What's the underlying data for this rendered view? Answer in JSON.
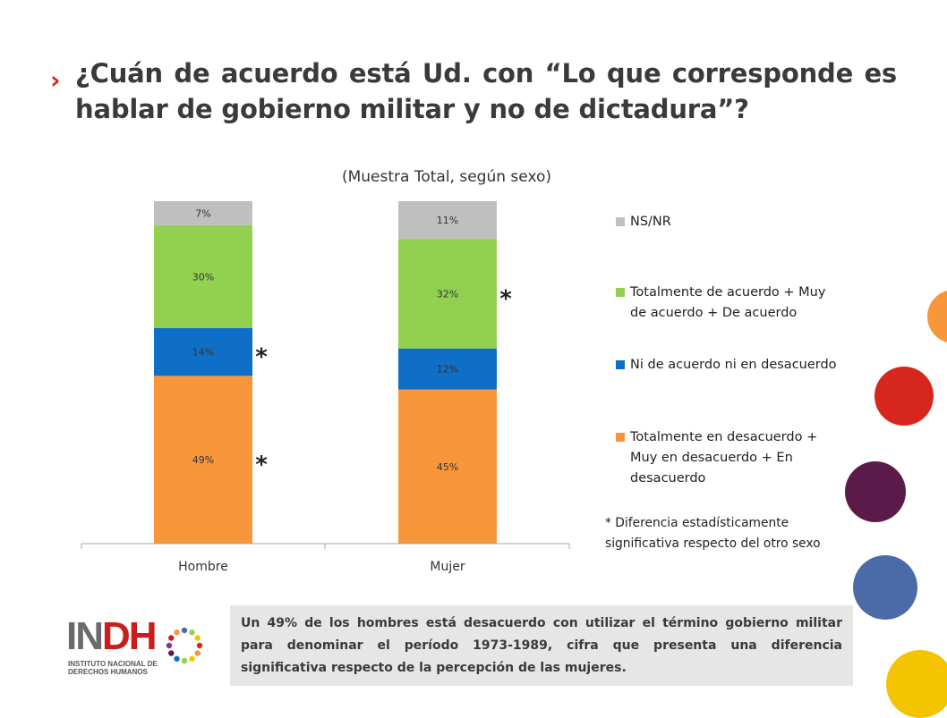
{
  "slide": {
    "title_line1": "¿Cuán de acuerdo está Ud. con “Lo que corresponde es",
    "title_line2": "hablar de gobierno militar y no de dictadura”?",
    "title_bullet": "›",
    "summary": "Un 49% de los hombres está desacuerdo con utilizar el término gobierno militar para denominar el período 1973-1989, cifra que presenta una diferencia significativa respecto de la percepción de las mujeres.",
    "footnote": "* Diferencia estadísticamente significativa respecto del otro sexo",
    "logo": {
      "mark_in": "IN",
      "mark_dh": "DH",
      "line1": "INSTITUTO NACIONAL DE",
      "line2": "DERECHOS HUMANOS"
    }
  },
  "chart_data": {
    "type": "bar",
    "stacked": true,
    "title": "(Muestra Total, según sexo)",
    "categories": [
      "Hombre",
      "Mujer"
    ],
    "ylim": [
      0,
      100
    ],
    "series": [
      {
        "name": "Totalmente en desacuerdo + Muy en desacuerdo + En desacuerdo",
        "values": [
          49,
          45
        ],
        "labels": [
          "49%",
          "45%"
        ],
        "color": "#f7963b"
      },
      {
        "name": "Ni de acuerdo ni en desacuerdo",
        "values": [
          14,
          12
        ],
        "labels": [
          "14%",
          "12%"
        ],
        "color": "#0f6fc6"
      },
      {
        "name": "Totalmente de acuerdo + Muy de acuerdo + De acuerdo",
        "values": [
          30,
          32
        ],
        "labels": [
          "30%",
          "32%"
        ],
        "color": "#92d050"
      },
      {
        "name": "NS/NR",
        "values": [
          7,
          11
        ],
        "labels": [
          "7%",
          "11%"
        ],
        "color": "#bfbfbf"
      }
    ],
    "legend_order": [
      3,
      2,
      1,
      0
    ],
    "legend_position": "right",
    "significance_marker": "*",
    "significance": [
      {
        "category": "Hombre",
        "series": 0
      },
      {
        "category": "Hombre",
        "series": 1
      },
      {
        "category": "Mujer",
        "series": 2
      }
    ]
  },
  "decor": {
    "circle_colors": [
      "#f7963b",
      "#d7261e",
      "#5c1a4a",
      "#4a6aa8",
      "#f5c400"
    ]
  }
}
